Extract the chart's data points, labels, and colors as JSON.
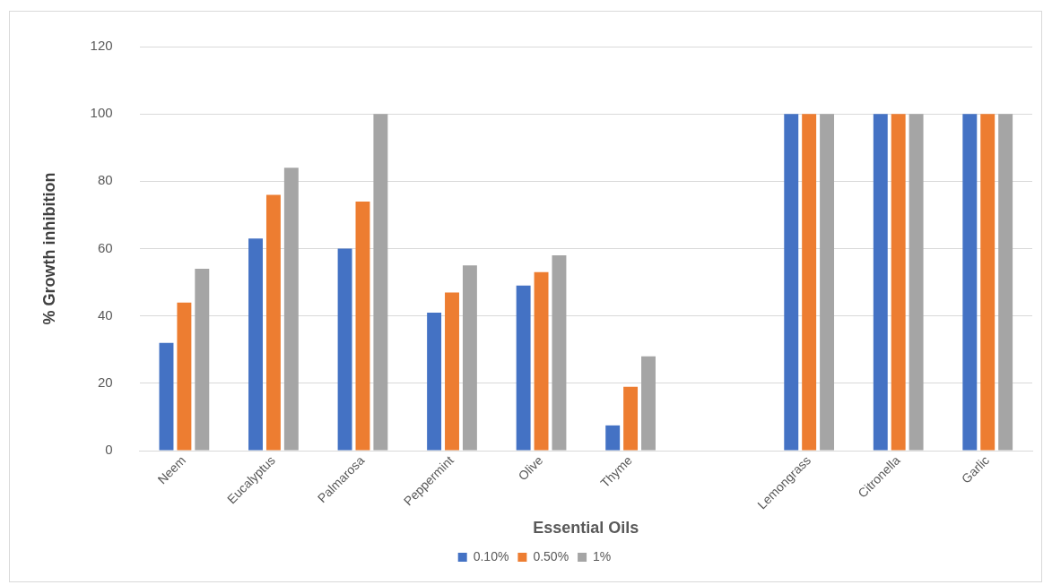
{
  "chart_data": {
    "type": "bar",
    "xlabel": "Essential Oils",
    "ylabel": "% Growth inhibition",
    "categories": [
      "Neem",
      "Eucalyptus",
      "Palmarosa",
      "Peppermint",
      "Olive",
      "Thyme",
      null,
      "Lemongrass",
      "Citronella",
      "Garlic"
    ],
    "series": [
      {
        "name": "0.10%",
        "color": "#4472c4",
        "values": [
          32,
          63,
          60,
          41,
          49,
          7.5,
          null,
          100,
          100,
          100
        ]
      },
      {
        "name": "0.50%",
        "color": "#ed7d31",
        "values": [
          44,
          76,
          74,
          47,
          53,
          19,
          null,
          100,
          100,
          100
        ]
      },
      {
        "name": "1%",
        "color": "#a5a5a5",
        "values": [
          54,
          84,
          100,
          55,
          58,
          28,
          null,
          100,
          100,
          100
        ]
      }
    ],
    "ylim": [
      0,
      120
    ],
    "yticks": [
      0,
      20,
      40,
      60,
      80,
      100,
      120
    ],
    "grid": "y",
    "legend": "bottom"
  }
}
